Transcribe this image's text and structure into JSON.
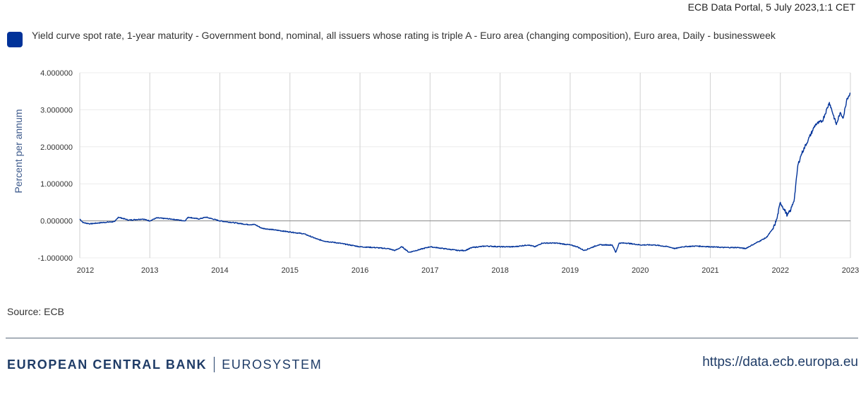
{
  "header": {
    "portal_date": "ECB Data Portal, 5 July 2023,1:1 CET"
  },
  "legend": {
    "color": "#003299",
    "label": "Yield curve spot rate, 1-year maturity - Government bond, nominal, all issuers whose rating is triple A - Euro area (changing composition), Euro area, Daily - businessweek"
  },
  "source": "Source: ECB",
  "footer": {
    "bank_name": "EUROPEAN CENTRAL BANK",
    "eurosystem": "EUROSYSTEM",
    "url": "https://data.ecb.europa.eu"
  },
  "chart_data": {
    "type": "line",
    "title": "",
    "xlabel": "",
    "ylabel": "Percent per annum",
    "ylim": [
      -1.0,
      4.0
    ],
    "xlim": [
      2012.0,
      2023.0
    ],
    "y_ticks": [
      "-1.000000",
      "0.000000",
      "1.000000",
      "2.000000",
      "3.000000",
      "4.000000"
    ],
    "x_ticks": [
      "2012",
      "2013",
      "2014",
      "2015",
      "2016",
      "2017",
      "2018",
      "2019",
      "2020",
      "2021",
      "2022",
      "2023"
    ],
    "grid": true,
    "legend_position": "top-left",
    "series": [
      {
        "name": "Yield curve spot rate, 1-year maturity - Government bond, nominal, all issuers whose rating is triple A - Euro area (changing composition), Euro area, Daily - businessweek",
        "color": "#003299",
        "x": [
          2012.0,
          2012.05,
          2012.15,
          2012.3,
          2012.5,
          2012.55,
          2012.7,
          2012.9,
          2013.0,
          2013.1,
          2013.3,
          2013.5,
          2013.55,
          2013.7,
          2013.8,
          2014.0,
          2014.2,
          2014.4,
          2014.5,
          2014.6,
          2014.8,
          2015.0,
          2015.2,
          2015.4,
          2015.5,
          2015.7,
          2016.0,
          2016.2,
          2016.4,
          2016.5,
          2016.6,
          2016.7,
          2016.9,
          2017.0,
          2017.2,
          2017.4,
          2017.5,
          2017.6,
          2017.8,
          2018.0,
          2018.2,
          2018.4,
          2018.5,
          2018.6,
          2018.8,
          2019.0,
          2019.1,
          2019.2,
          2019.4,
          2019.6,
          2019.65,
          2019.7,
          2019.8,
          2020.0,
          2020.2,
          2020.4,
          2020.5,
          2020.6,
          2020.8,
          2021.0,
          2021.2,
          2021.4,
          2021.5,
          2021.6,
          2021.8,
          2021.9,
          2021.95,
          2022.0,
          2022.1,
          2022.15,
          2022.2,
          2022.25,
          2022.3,
          2022.35,
          2022.4,
          2022.5,
          2022.6,
          2022.7,
          2022.8,
          2022.85,
          2022.9,
          2022.95,
          2023.0
        ],
        "values": [
          0.05,
          -0.05,
          -0.08,
          -0.05,
          -0.02,
          0.1,
          0.02,
          0.05,
          0.0,
          0.08,
          0.05,
          0.0,
          0.1,
          0.05,
          0.1,
          0.0,
          -0.05,
          -0.1,
          -0.1,
          -0.2,
          -0.25,
          -0.3,
          -0.35,
          -0.5,
          -0.55,
          -0.6,
          -0.7,
          -0.72,
          -0.75,
          -0.8,
          -0.7,
          -0.85,
          -0.75,
          -0.7,
          -0.75,
          -0.8,
          -0.8,
          -0.72,
          -0.68,
          -0.7,
          -0.7,
          -0.65,
          -0.7,
          -0.6,
          -0.6,
          -0.65,
          -0.7,
          -0.8,
          -0.65,
          -0.65,
          -0.85,
          -0.6,
          -0.6,
          -0.65,
          -0.65,
          -0.7,
          -0.75,
          -0.7,
          -0.68,
          -0.7,
          -0.72,
          -0.72,
          -0.75,
          -0.65,
          -0.45,
          -0.2,
          0.05,
          0.5,
          0.15,
          0.3,
          0.6,
          1.5,
          1.8,
          2.0,
          2.2,
          2.6,
          2.7,
          3.2,
          2.6,
          2.9,
          2.8,
          3.3,
          3.45
        ]
      }
    ]
  }
}
